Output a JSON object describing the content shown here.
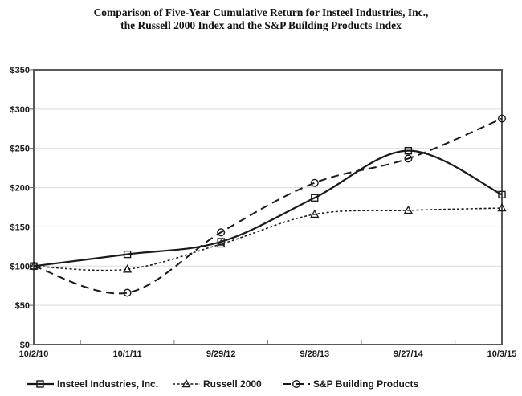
{
  "title": {
    "line1": "Comparison of Five-Year Cumulative Return for Insteel Industries, Inc.,",
    "line2": "the Russell 2000 Index and the S&P Building Products Index"
  },
  "chart_data": {
    "type": "line",
    "smoothed": true,
    "categories": [
      "10/2/10",
      "10/1/11",
      "9/29/12",
      "9/28/13",
      "9/27/14",
      "10/3/15"
    ],
    "series": [
      {
        "name": "Insteel Industries, Inc.",
        "marker": "square",
        "line_style": "solid",
        "values": [
          100,
          115,
          131,
          187,
          247,
          191
        ]
      },
      {
        "name": "Russell 2000",
        "marker": "triangle",
        "line_style": "dotted",
        "values": [
          100,
          96,
          128,
          166,
          171,
          174
        ]
      },
      {
        "name": "S&P Building Products",
        "marker": "circle",
        "line_style": "dashed",
        "values": [
          100,
          66,
          143,
          206,
          237,
          288
        ]
      }
    ],
    "ylim": [
      0,
      350
    ],
    "ytick_step": 50,
    "ytick_labels": [
      "$0",
      "$50",
      "$100",
      "$150",
      "$200",
      "$250",
      "$300",
      "$350"
    ],
    "grid": true,
    "legend_position": "bottom"
  },
  "colors": {
    "line": "#1a1a1a",
    "grid": "#d9d9d9",
    "frame": "#595959",
    "tick": "#808080",
    "text": "#1a1a1a",
    "background": "#ffffff"
  }
}
